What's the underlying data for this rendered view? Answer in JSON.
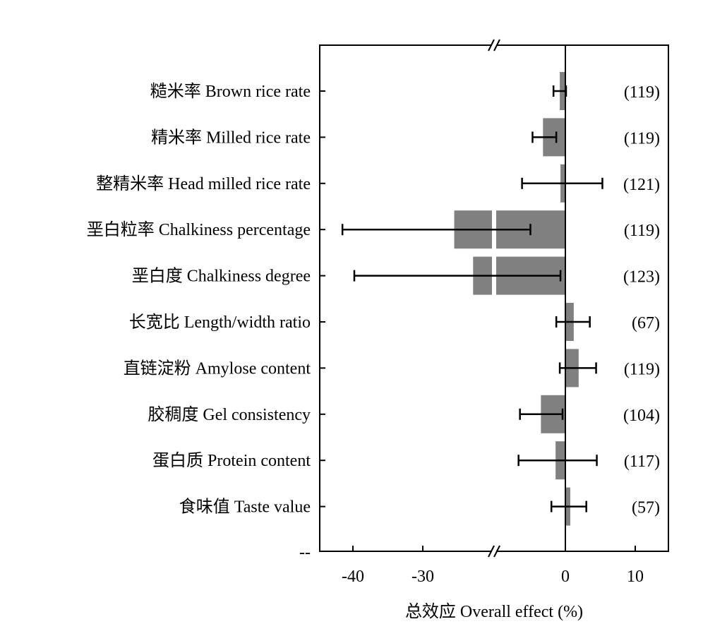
{
  "chart_data": {
    "type": "bar",
    "orientation": "horizontal",
    "xlabel": "总效应 Overall effect (%)",
    "ylabel": "",
    "title": "",
    "x_axis_break": {
      "from": -20,
      "to": -10
    },
    "xlim": [
      -45,
      15
    ],
    "xticks": [
      -40,
      -30,
      0,
      10
    ],
    "x_tick_labels": [
      "-40",
      "-30",
      "0",
      "10"
    ],
    "y_axis_stub_label": "--",
    "grid": false,
    "legend": "none",
    "bar_color": "#808080",
    "categories": [
      "糙米率 Brown rice rate",
      "精米率 Milled rice rate",
      "整精米率 Head milled rice rate",
      "垩白粒率 Chalkiness percentage",
      "垩白度 Chalkiness degree",
      "长宽比 Length/width ratio",
      "直链淀粉 Amylose content",
      "胶稠度 Gel consistency",
      "蛋白质 Protein content",
      "食味值 Taste value"
    ],
    "series": [
      {
        "values": [
          -0.8,
          -3.2,
          -0.7,
          -25.5,
          -22.8,
          1.2,
          1.9,
          -3.5,
          -1.4,
          0.7
        ],
        "ci_low": [
          -1.7,
          -4.7,
          -6.2,
          -41.5,
          -39.8,
          -1.3,
          -0.8,
          -6.5,
          -6.7,
          -2.0
        ],
        "ci_high": [
          0.1,
          -1.3,
          5.3,
          -5.0,
          -0.7,
          3.5,
          4.4,
          -0.4,
          4.5,
          3.0
        ]
      }
    ],
    "sample_sizes": [
      "(119)",
      "(119)",
      "(121)",
      "(119)",
      "(123)",
      "(67)",
      "(119)",
      "(104)",
      "(117)",
      "(57)"
    ]
  }
}
